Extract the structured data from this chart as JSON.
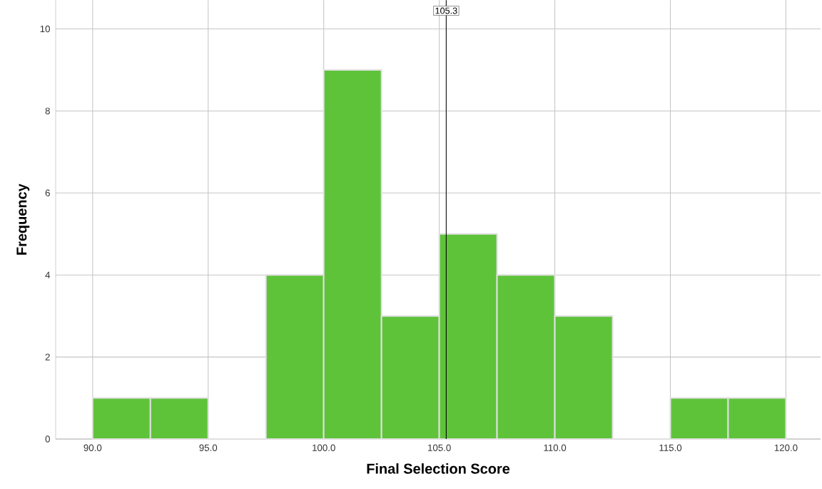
{
  "chart_data": {
    "type": "histogram",
    "xlabel": "Final Selection Score",
    "ylabel": "Frequency",
    "bins": [
      90,
      92.5,
      95,
      97.5,
      100,
      102.5,
      105,
      107.5,
      110,
      112.5,
      115,
      117.5,
      120
    ],
    "values": [
      1,
      1,
      0,
      4,
      9,
      3,
      5,
      4,
      3,
      0,
      1,
      1
    ],
    "color": "#5fc33a",
    "xlim": [
      88.4,
      121.5
    ],
    "ylim": [
      0,
      10.7
    ],
    "xticks": [
      {
        "value": 90,
        "label": "90.0"
      },
      {
        "value": 95,
        "label": "95.0"
      },
      {
        "value": 100,
        "label": "100.0"
      },
      {
        "value": 105,
        "label": "105.0"
      },
      {
        "value": 110,
        "label": "110.0"
      },
      {
        "value": 115,
        "label": "115.0"
      },
      {
        "value": 120,
        "label": "120.0"
      }
    ],
    "yticks": [
      0,
      2,
      4,
      6,
      8,
      10
    ],
    "grid": true,
    "ref_lines": [
      {
        "axis": "x",
        "value": 105.3,
        "label": "105.3",
        "color": "#000000"
      }
    ]
  }
}
